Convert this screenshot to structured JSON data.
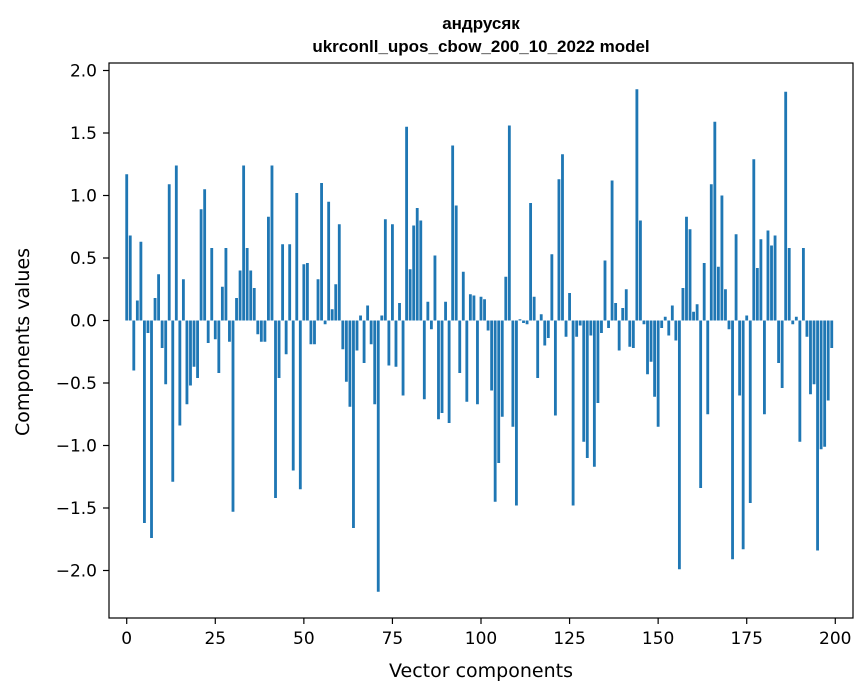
{
  "chart_data": {
    "type": "bar",
    "title": "андрусяк",
    "subtitle": "ukrconll_upos_cbow_200_10_2022 model",
    "xlabel": "Vector components",
    "ylabel": "Components values",
    "xlim": [
      -5,
      205
    ],
    "ylim": [
      -2.38,
      2.06
    ],
    "xticks": [
      0,
      25,
      50,
      75,
      100,
      125,
      150,
      175,
      200
    ],
    "yticks": [
      2.0,
      1.5,
      1.0,
      0.5,
      0.0,
      -0.5,
      -1.0,
      -1.5,
      -2.0
    ],
    "xtick_labels": [
      "0",
      "25",
      "50",
      "75",
      "100",
      "125",
      "150",
      "175",
      "200"
    ],
    "ytick_labels": [
      "2.0",
      "1.5",
      "1.0",
      "0.5",
      "0.0",
      "−0.5",
      "−1.0",
      "−1.5",
      "−2.0"
    ],
    "bar_color": "#1f77b4",
    "values": [
      1.17,
      0.68,
      -0.4,
      0.16,
      0.63,
      -1.62,
      -0.1,
      -1.74,
      0.18,
      0.37,
      -0.22,
      -0.51,
      1.09,
      -1.29,
      1.24,
      -0.84,
      0.33,
      -0.67,
      -0.52,
      -0.37,
      -0.46,
      0.89,
      1.05,
      -0.18,
      0.58,
      -0.15,
      -0.42,
      0.27,
      0.58,
      -0.17,
      -1.53,
      0.18,
      0.4,
      1.24,
      0.58,
      0.4,
      0.26,
      -0.11,
      -0.17,
      -0.17,
      0.83,
      1.24,
      -1.42,
      -0.46,
      0.61,
      -0.27,
      0.61,
      -1.2,
      1.02,
      -1.35,
      0.45,
      0.46,
      -0.19,
      -0.19,
      0.33,
      1.1,
      -0.03,
      0.95,
      0.09,
      0.29,
      0.77,
      -0.23,
      -0.49,
      -0.69,
      -1.66,
      -0.24,
      0.04,
      -0.34,
      0.12,
      -0.19,
      -0.67,
      -2.17,
      0.04,
      0.81,
      -0.36,
      0.77,
      -0.37,
      0.14,
      -0.6,
      1.55,
      0.41,
      0.76,
      0.9,
      0.8,
      -0.63,
      0.15,
      -0.07,
      0.52,
      -0.79,
      -0.74,
      0.15,
      -0.82,
      1.4,
      0.92,
      -0.42,
      0.39,
      -0.65,
      0.21,
      0.2,
      -0.67,
      0.19,
      0.17,
      -0.08,
      -0.56,
      -1.45,
      -1.14,
      -0.77,
      0.35,
      1.56,
      -0.85,
      -1.48,
      0.01,
      -0.02,
      -0.03,
      0.94,
      0.19,
      -0.46,
      0.05,
      -0.2,
      -0.14,
      0.53,
      -0.76,
      1.13,
      1.33,
      -0.13,
      0.22,
      -1.48,
      -0.13,
      -0.04,
      -0.97,
      -1.1,
      -0.12,
      -1.17,
      -0.66,
      -0.1,
      0.48,
      -0.06,
      1.12,
      0.14,
      -0.24,
      0.1,
      0.25,
      -0.21,
      -0.22,
      1.85,
      0.8,
      -0.03,
      -0.43,
      -0.33,
      -0.61,
      -0.85,
      -0.06,
      0.03,
      -0.12,
      0.12,
      -0.16,
      -1.99,
      0.26,
      0.83,
      0.73,
      0.07,
      0.13,
      -1.34,
      0.46,
      -0.75,
      1.09,
      1.59,
      0.43,
      1.0,
      0.25,
      -0.07,
      -1.91,
      0.69,
      -0.6,
      -1.83,
      0.04,
      -1.46,
      1.29,
      0.42,
      0.65,
      -0.75,
      0.72,
      0.6,
      0.68,
      -0.34,
      -0.54,
      1.83,
      0.58,
      -0.03,
      0.03,
      -0.97,
      0.58,
      -0.13,
      -0.59,
      -0.51,
      -1.84,
      -1.03,
      -1.01,
      -0.64,
      -0.22
    ]
  }
}
